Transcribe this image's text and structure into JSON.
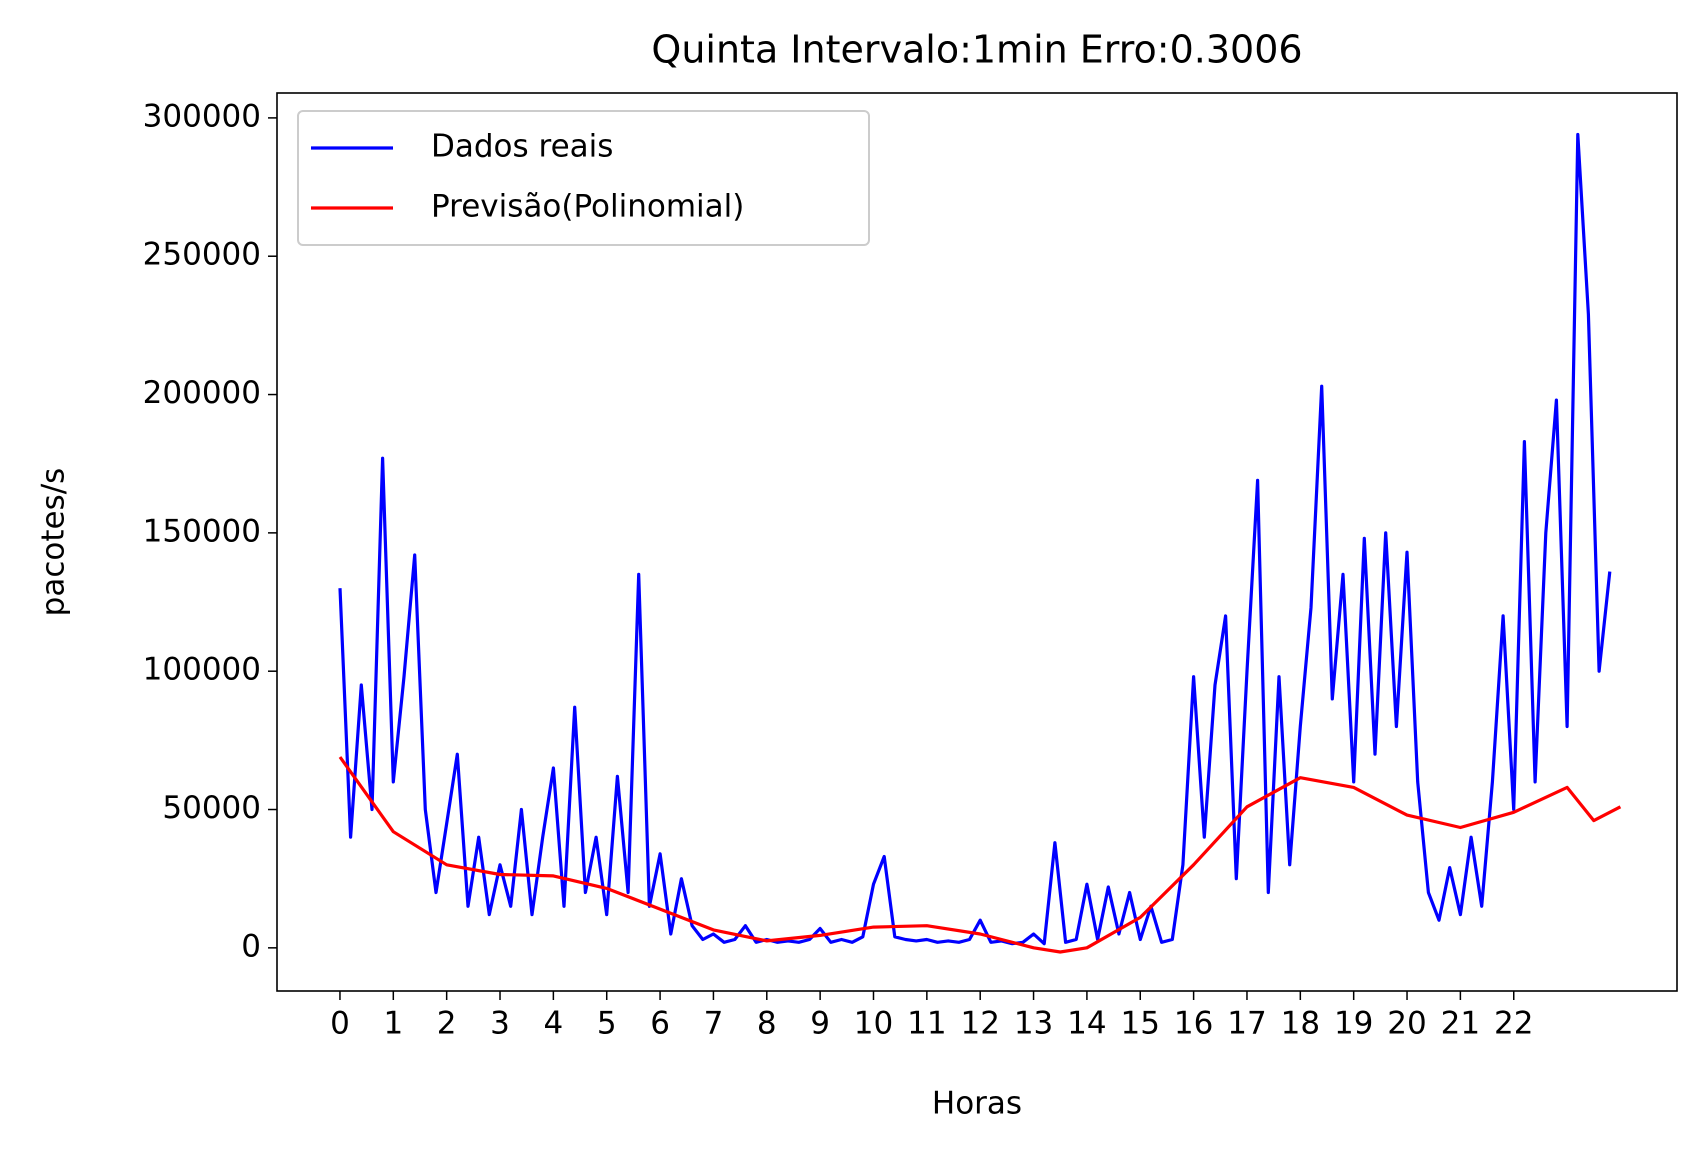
{
  "chart_data": {
    "type": "line",
    "title": "Quinta Intervalo:1min Erro:0.3006",
    "x_label": "Horas",
    "y_label": "pacotes/s",
    "xlim": [
      -1.18,
      25.06
    ],
    "ylim": [
      -15600,
      309000
    ],
    "xticks": [
      0,
      1,
      2,
      3,
      4,
      5,
      6,
      7,
      8,
      9,
      10,
      11,
      12,
      13,
      14,
      15,
      16,
      17,
      18,
      19,
      20,
      21,
      22
    ],
    "yticks": [
      0,
      50000,
      100000,
      150000,
      200000,
      250000,
      300000
    ],
    "legend": "upper left",
    "series": [
      {
        "name": "Dados reais",
        "color": "#0000ff",
        "x": [
          0,
          0.2,
          0.4,
          0.6,
          0.8,
          1,
          1.2,
          1.4,
          1.6,
          1.8,
          2,
          2.2,
          2.4,
          2.6,
          2.8,
          3,
          3.2,
          3.4,
          3.6,
          3.8,
          4,
          4.2,
          4.4,
          4.6,
          4.8,
          5,
          5.2,
          5.4,
          5.6,
          5.8,
          6,
          6.2,
          6.4,
          6.6,
          6.8,
          7,
          7.2,
          7.4,
          7.6,
          7.8,
          8,
          8.2,
          8.4,
          8.6,
          8.8,
          9,
          9.2,
          9.4,
          9.6,
          9.8,
          10,
          10.2,
          10.4,
          10.6,
          10.8,
          11,
          11.2,
          11.4,
          11.6,
          11.8,
          12,
          12.2,
          12.4,
          12.6,
          12.8,
          13,
          13.2,
          13.4,
          13.6,
          13.8,
          14,
          14.2,
          14.4,
          14.6,
          14.8,
          15,
          15.2,
          15.4,
          15.6,
          15.8,
          16,
          16.2,
          16.4,
          16.6,
          16.8,
          17,
          17.2,
          17.4,
          17.6,
          17.8,
          18,
          18.2,
          18.4,
          18.6,
          18.8,
          19,
          19.2,
          19.4,
          19.6,
          19.8,
          20,
          20.2,
          20.4,
          20.6,
          20.8,
          21,
          21.2,
          21.4,
          21.6,
          21.8,
          22,
          22.2,
          22.4,
          22.6,
          22.8,
          23,
          23.2,
          23.4,
          23.6,
          23.8
        ],
        "values": [
          130000,
          40000,
          95000,
          50000,
          177000,
          60000,
          98000,
          142000,
          50000,
          20000,
          45000,
          70000,
          15000,
          40000,
          12000,
          30000,
          15000,
          50000,
          12000,
          40000,
          65000,
          15000,
          87000,
          20000,
          40000,
          12000,
          62000,
          20000,
          135000,
          15000,
          34000,
          5000,
          25000,
          8000,
          3000,
          5000,
          2000,
          3000,
          8000,
          2000,
          3000,
          2000,
          2500,
          2000,
          3000,
          7000,
          2000,
          3000,
          2000,
          4000,
          23000,
          33000,
          4000,
          3000,
          2500,
          3000,
          2000,
          2500,
          2000,
          3000,
          10000,
          2000,
          2500,
          1500,
          2000,
          5000,
          1500,
          38000,
          2000,
          3000,
          23000,
          3000,
          22000,
          5000,
          20000,
          3000,
          15000,
          2000,
          3000,
          30000,
          98000,
          40000,
          95000,
          120000,
          25000,
          100000,
          169000,
          20000,
          98000,
          30000,
          80000,
          123000,
          203000,
          90000,
          135000,
          60000,
          148000,
          70000,
          150000,
          80000,
          143000,
          60000,
          20000,
          10000,
          29000,
          12000,
          40000,
          15000,
          60000,
          120000,
          50000,
          183000,
          60000,
          150000,
          198000,
          80000,
          294000,
          229000,
          100000,
          136000
        ]
      },
      {
        "name": "Previsão(Polinomial)",
        "color": "#ff0000",
        "x": [
          0,
          1,
          2,
          3,
          4,
          5,
          6,
          7,
          8,
          9,
          10,
          11,
          12,
          13,
          13.5,
          14,
          15,
          16,
          17,
          18,
          19,
          20,
          21,
          22,
          23,
          23.5,
          24
        ],
        "values": [
          69000,
          42000,
          30000,
          26500,
          26000,
          21500,
          14000,
          6500,
          2500,
          4500,
          7500,
          8000,
          5000,
          0,
          -1500,
          0,
          11000,
          30000,
          51000,
          61500,
          58000,
          48000,
          43500,
          49000,
          58000,
          46000,
          51000
        ]
      }
    ]
  }
}
